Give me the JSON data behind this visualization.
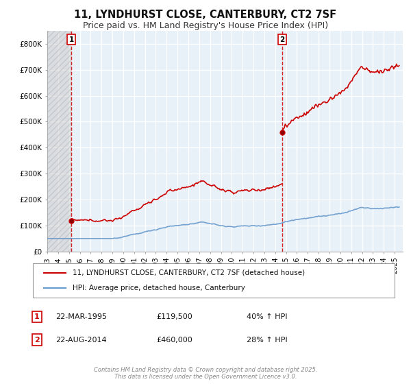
{
  "title": "11, LYNDHURST CLOSE, CANTERBURY, CT2 7SF",
  "subtitle": "Price paid vs. HM Land Registry's House Price Index (HPI)",
  "ylim": [
    0,
    850000
  ],
  "yticks": [
    0,
    100000,
    200000,
    300000,
    400000,
    500000,
    600000,
    700000,
    800000
  ],
  "ytick_labels": [
    "£0",
    "£100K",
    "£200K",
    "£300K",
    "£400K",
    "£500K",
    "£600K",
    "£700K",
    "£800K"
  ],
  "xlim_start": 1993.0,
  "xlim_end": 2025.75,
  "sale1_x": 1995.22,
  "sale1_y": 119500,
  "sale2_x": 2014.64,
  "sale2_y": 460000,
  "legend_line1": "11, LYNDHURST CLOSE, CANTERBURY, CT2 7SF (detached house)",
  "legend_line2": "HPI: Average price, detached house, Canterbury",
  "annotation1_date": "22-MAR-1995",
  "annotation1_price": "£119,500",
  "annotation1_hpi": "40% ↑ HPI",
  "annotation2_date": "22-AUG-2014",
  "annotation2_price": "£460,000",
  "annotation2_hpi": "28% ↑ HPI",
  "line1_color": "#CC0000",
  "line2_color": "#6699CC",
  "bg_color": "#FFFFFF",
  "plot_bg": "#E8F0F8",
  "grid_color": "#FFFFFF",
  "footer": "Contains HM Land Registry data © Crown copyright and database right 2025.\nThis data is licensed under the Open Government Licence v3.0.",
  "title_fontsize": 10.5,
  "subtitle_fontsize": 9
}
